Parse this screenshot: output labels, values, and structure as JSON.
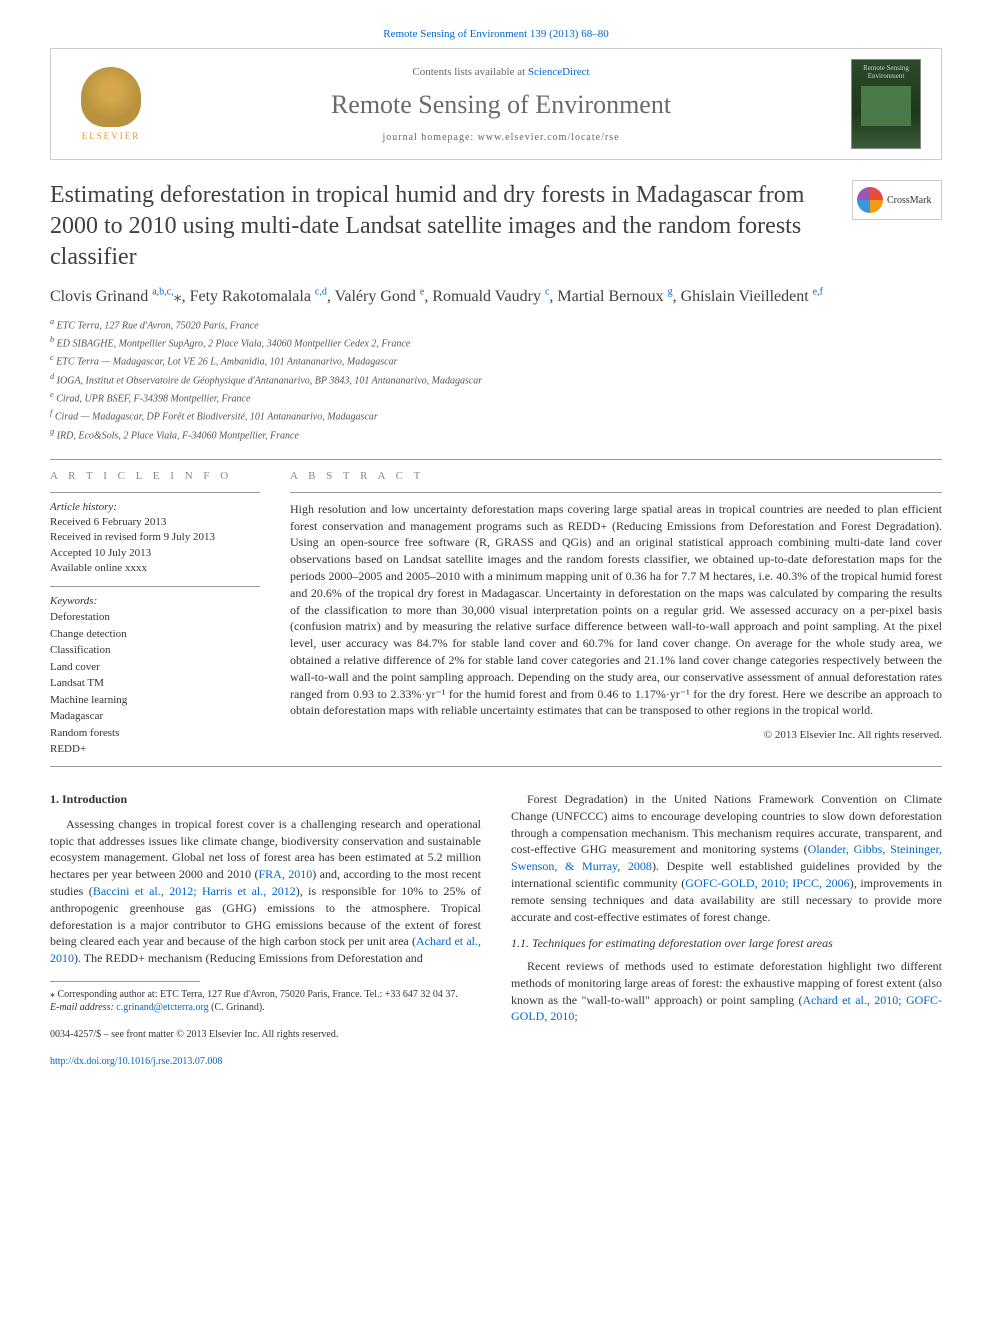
{
  "header": {
    "journal_link_text": "Remote Sensing of Environment 139 (2013) 68–80",
    "contents_prefix": "Contents lists available at ",
    "contents_link": "ScienceDirect",
    "journal_title": "Remote Sensing of Environment",
    "homepage_label": "journal homepage: www.elsevier.com/locate/rse",
    "elsevier_label": "ELSEVIER",
    "cover_text": "Remote Sensing Environment"
  },
  "crossmark": {
    "label": "CrossMark"
  },
  "article": {
    "title": "Estimating deforestation in tropical humid and dry forests in Madagascar from 2000 to 2010 using multi-date Landsat satellite images and the random forests classifier",
    "authors_html": "Clovis Grinand <sup>a,b,c,</sup><span class='star'>⁎</span>, Fety Rakotomalala <sup>c,d</sup>, Valéry Gond <sup>e</sup>, Romuald Vaudry <sup>c</sup>, Martial Bernoux <sup>g</sup>, Ghislain Vieilledent <sup>e,f</sup>",
    "affiliations": [
      "a ETC Terra, 127 Rue d'Avron, 75020 Paris, France",
      "b ED SIBAGHE, Montpellier SupAgro, 2 Place Viala, 34060 Montpellier Cedex 2, France",
      "c ETC Terra — Madagascar, Lot VE 26 L, Ambanidia, 101 Antananarivo, Madagascar",
      "d IOGA, Institut et Observatoire de Géophysique d'Antananarivo, BP 3843, 101 Antananarivo, Madagascar",
      "e Cirad, UPR BSEF, F-34398 Montpellier, France",
      "f Cirad — Madagascar, DP Forêt et Biodiversité, 101 Antananarivo, Madagascar",
      "g IRD, Eco&Sols, 2 Place Viala, F-34060 Montpellier, France"
    ]
  },
  "info": {
    "heading": "A R T I C L E   I N F O",
    "history_head": "Article history:",
    "history": "Received 6 February 2013\nReceived in revised form 9 July 2013\nAccepted 10 July 2013\nAvailable online xxxx",
    "keywords_head": "Keywords:",
    "keywords": [
      "Deforestation",
      "Change detection",
      "Classification",
      "Land cover",
      "Landsat TM",
      "Machine learning",
      "Madagascar",
      "Random forests",
      "REDD+"
    ]
  },
  "abstract": {
    "heading": "A B S T R A C T",
    "text": "High resolution and low uncertainty deforestation maps covering large spatial areas in tropical countries are needed to plan efficient forest conservation and management programs such as REDD+ (Reducing Emissions from Deforestation and Forest Degradation). Using an open-source free software (R, GRASS and QGis) and an original statistical approach combining multi-date land cover observations based on Landsat satellite images and the random forests classifier, we obtained up-to-date deforestation maps for the periods 2000–2005 and 2005–2010 with a minimum mapping unit of 0.36 ha for 7.7 M hectares, i.e. 40.3% of the tropical humid forest and 20.6% of the tropical dry forest in Madagascar. Uncertainty in deforestation on the maps was calculated by comparing the results of the classification to more than 30,000 visual interpretation points on a regular grid. We assessed accuracy on a per-pixel basis (confusion matrix) and by measuring the relative surface difference between wall-to-wall approach and point sampling. At the pixel level, user accuracy was 84.7% for stable land cover and 60.7% for land cover change. On average for the whole study area, we obtained a relative difference of 2% for stable land cover categories and 21.1% land cover change categories respectively between the wall-to-wall and the point sampling approach. Depending on the study area, our conservative assessment of annual deforestation rates ranged from 0.93 to 2.33%·yr⁻¹ for the humid forest and from 0.46 to 1.17%·yr⁻¹ for the dry forest. Here we describe an approach to obtain deforestation maps with reliable uncertainty estimates that can be transposed to other regions in the tropical world.",
    "copyright": "© 2013 Elsevier Inc. All rights reserved."
  },
  "sections": {
    "intro_title": "1. Introduction",
    "intro_p1": "Assessing changes in tropical forest cover is a challenging research and operational topic that addresses issues like climate change, biodiversity conservation and sustainable ecosystem management. Global net loss of forest area has been estimated at 5.2 million hectares per year between 2000 and 2010 (FRA, 2010) and, according to the most recent studies (Baccini et al., 2012; Harris et al., 2012), is responsible for 10% to 25% of anthropogenic greenhouse gas (GHG) emissions to the atmosphere. Tropical deforestation is a major contributor to GHG emissions because of the extent of forest being cleared each year and because of the high carbon stock per unit area (Achard et al., 2010). The REDD+ mechanism (Reducing Emissions from Deforestation and",
    "intro_p2": "Forest Degradation) in the United Nations Framework Convention on Climate Change (UNFCCC) aims to encourage developing countries to slow down deforestation through a compensation mechanism. This mechanism requires accurate, transparent, and cost-effective GHG measurement and monitoring systems (Olander, Gibbs, Steininger, Swenson, & Murray, 2008). Despite well established guidelines provided by the international scientific community (GOFC-GOLD, 2010; IPCC, 2006), improvements in remote sensing techniques and data availability are still necessary to provide more accurate and cost-effective estimates of forest change.",
    "sub_1_1_title": "1.1. Techniques for estimating deforestation over large forest areas",
    "sub_1_1_p": "Recent reviews of methods used to estimate deforestation highlight two different methods of monitoring large areas of forest: the exhaustive mapping of forest extent (also known as the \"wall-to-wall\" approach) or point sampling (Achard et al., 2010; GOFC-GOLD, 2010;"
  },
  "footnotes": {
    "corresponding": "⁎ Corresponding author at: ETC Terra, 127 Rue d'Avron, 75020 Paris, France. Tel.: +33 647 32 04 37.",
    "email_label": "E-mail address: ",
    "email": "c.grinand@etcterra.org",
    "email_suffix": " (C. Grinand)."
  },
  "footer": {
    "issn": "0034-4257/$ – see front matter © 2013 Elsevier Inc. All rights reserved.",
    "doi": "http://dx.doi.org/10.1016/j.rse.2013.07.008"
  },
  "colors": {
    "link": "#0066cc",
    "text": "#333333",
    "heading_gray": "#888888",
    "title_gray": "#404040"
  }
}
